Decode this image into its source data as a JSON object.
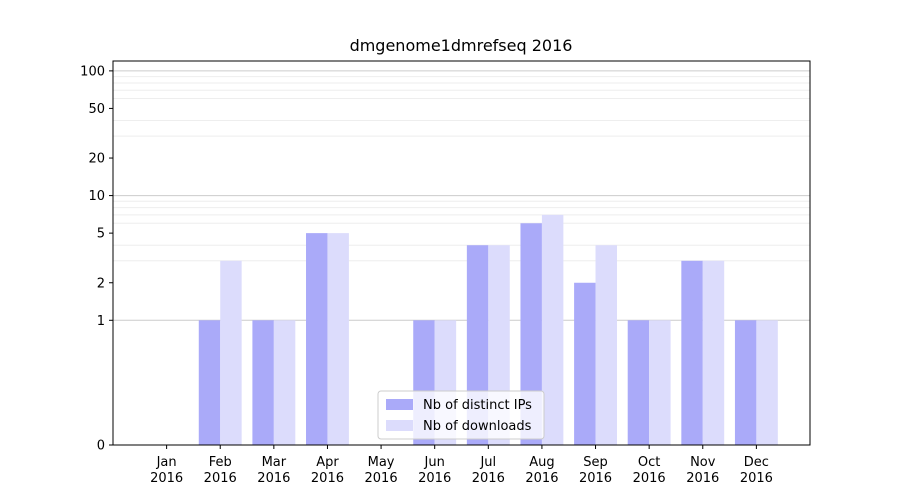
{
  "chart_data": {
    "type": "bar",
    "title": "dmgenome1dmrefseq 2016",
    "xlabel": "",
    "ylabel": "",
    "yscale": "symlog",
    "ylim": [
      0,
      120
    ],
    "yticks": [
      0,
      1,
      2,
      5,
      10,
      20,
      50,
      100
    ],
    "grid": true,
    "legend_position": "lower-center",
    "categories": [
      [
        "Jan",
        "2016"
      ],
      [
        "Feb",
        "2016"
      ],
      [
        "Mar",
        "2016"
      ],
      [
        "Apr",
        "2016"
      ],
      [
        "May",
        "2016"
      ],
      [
        "Jun",
        "2016"
      ],
      [
        "Jul",
        "2016"
      ],
      [
        "Aug",
        "2016"
      ],
      [
        "Sep",
        "2016"
      ],
      [
        "Oct",
        "2016"
      ],
      [
        "Nov",
        "2016"
      ],
      [
        "Dec",
        "2016"
      ]
    ],
    "series": [
      {
        "name": "Nb of distinct IPs",
        "color": "#aaaaf9",
        "values": [
          0,
          1,
          1,
          5,
          0,
          1,
          4,
          6,
          2,
          1,
          3,
          1
        ]
      },
      {
        "name": "Nb of downloads",
        "color": "#dcdcfc",
        "values": [
          0,
          3,
          1,
          5,
          0,
          1,
          4,
          7,
          4,
          1,
          3,
          1
        ]
      }
    ]
  }
}
